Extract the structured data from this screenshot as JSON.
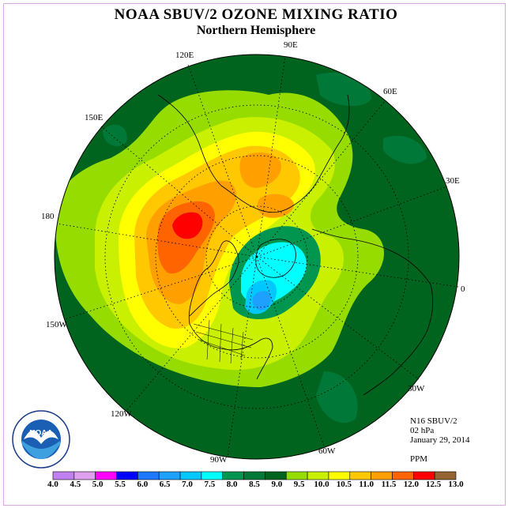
{
  "header": {
    "title": "NOAA SBUV/2 OZONE MIXING RATIO",
    "subtitle": "Northern Hemisphere"
  },
  "longitude_labels": [
    "90E",
    "60E",
    "30E",
    "0",
    "30W",
    "60W",
    "90W",
    "120W",
    "150W",
    "180",
    "150E",
    "120E"
  ],
  "info": {
    "instrument": "N16 SBUV/2",
    "level": "02 hPa",
    "date": "January 29, 2014",
    "units": "PPM"
  },
  "legend": {
    "labels": [
      "4.0",
      "4.5",
      "5.0",
      "5.5",
      "6.0",
      "6.5",
      "7.0",
      "7.5",
      "8.0",
      "8.5",
      "9.0",
      "9.5",
      "10.0",
      "10.5",
      "11.0",
      "11.5",
      "12.0",
      "12.5",
      "13.0"
    ],
    "colors": [
      "#c080f0",
      "#e0a0f0",
      "#ff00ff",
      "#0000ff",
      "#1e78ff",
      "#1ea0ff",
      "#00c8ff",
      "#00ffff",
      "#009650",
      "#007838",
      "#00641e",
      "#96dc00",
      "#c8f000",
      "#ffff00",
      "#ffc800",
      "#ffa000",
      "#ff6400",
      "#ff0000",
      "#966432"
    ]
  },
  "logo": {
    "text": "NOAA",
    "ring_text": "NATIONAL OCEANIC AND ATMOSPHERIC ADMINISTRATION · U.S. DEPARTMENT OF COMMERCE"
  },
  "colors": {
    "background_field": "#00641e",
    "frame": "#d8a8e0"
  }
}
